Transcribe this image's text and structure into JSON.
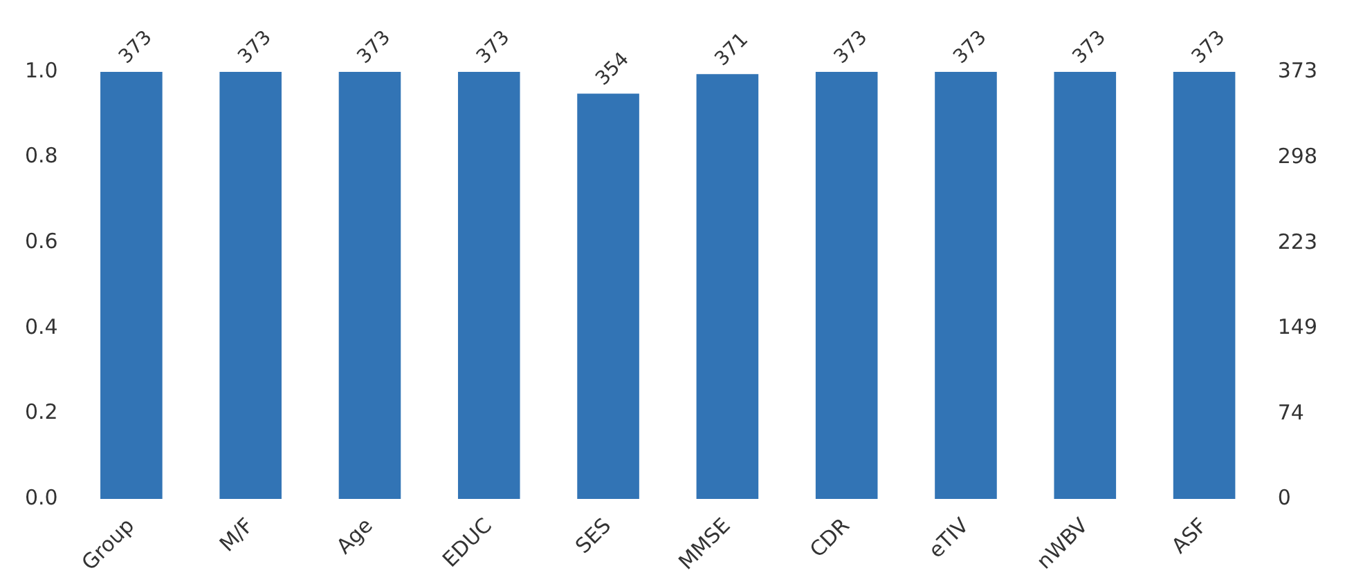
{
  "chart_data": {
    "type": "bar",
    "categories": [
      "Group",
      "M/F",
      "Age",
      "EDUC",
      "SES",
      "MMSE",
      "CDR",
      "eTIV",
      "nWBV",
      "ASF"
    ],
    "series": [
      {
        "color": "#3274b5",
        "axis": "y2",
        "values": [
          373,
          373,
          373,
          373,
          354,
          371,
          373,
          373,
          373,
          373
        ]
      }
    ],
    "ylim": [
      0,
      1
    ],
    "yticks": [
      {
        "value": 0,
        "label": "0.0"
      },
      {
        "value": 0.2,
        "label": "0.2"
      },
      {
        "value": 0.4,
        "label": "0.4"
      },
      {
        "value": 0.6,
        "label": "0.6"
      },
      {
        "value": 0.8,
        "label": "0.8"
      },
      {
        "value": 1,
        "label": "1.0"
      }
    ],
    "y2lim": [
      0,
      373
    ],
    "y2ticks": [
      0,
      74,
      149,
      223,
      298,
      373
    ],
    "data_labels": true,
    "grid": false,
    "legend": false
  }
}
